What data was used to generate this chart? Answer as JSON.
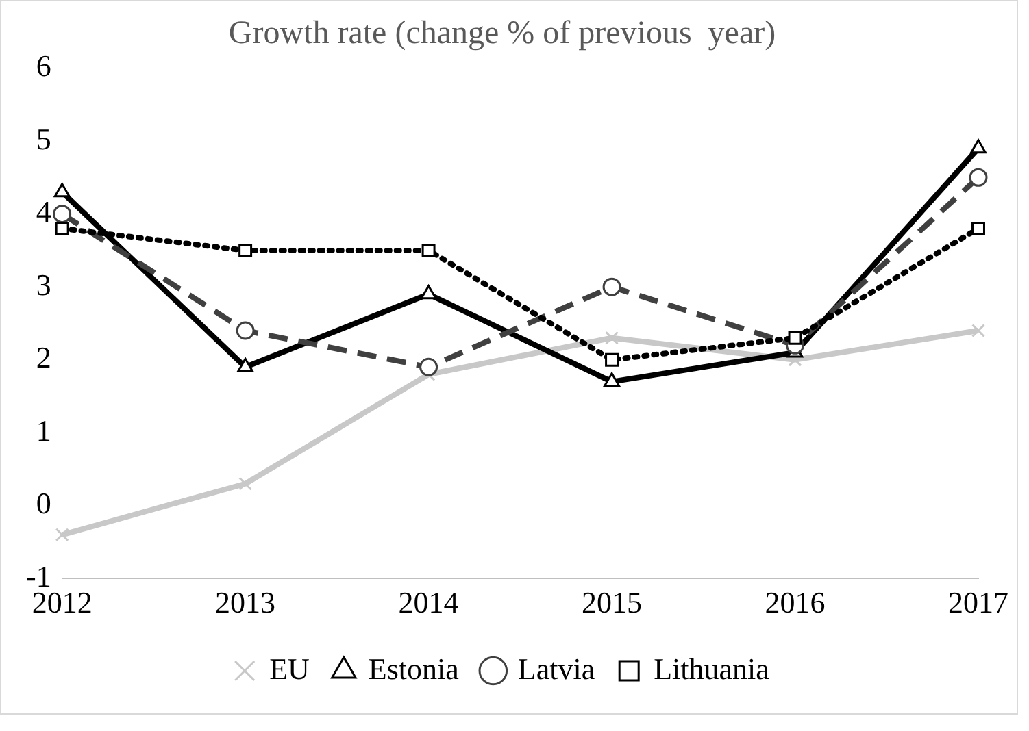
{
  "chart_data": {
    "type": "line",
    "title": "Growth rate (change % of previous  year)",
    "categories": [
      "2012",
      "2013",
      "2014",
      "2015",
      "2016",
      "2017"
    ],
    "series": [
      {
        "name": "EU",
        "color": "#c8c8c8",
        "marker": "cross",
        "line_style": "solid",
        "values": [
          -0.4,
          0.3,
          1.8,
          2.3,
          2.0,
          2.4
        ]
      },
      {
        "name": "Estonia",
        "color": "#000000",
        "marker": "triangle",
        "line_style": "solid",
        "values": [
          4.3,
          1.9,
          2.9,
          1.7,
          2.1,
          4.9
        ]
      },
      {
        "name": "Latvia",
        "color": "#404040",
        "marker": "circle",
        "line_style": "dashed",
        "values": [
          4.0,
          2.4,
          1.9,
          3.0,
          2.2,
          4.5
        ]
      },
      {
        "name": "Lithuania",
        "color": "#000000",
        "marker": "square",
        "line_style": "dotted",
        "values": [
          3.8,
          3.5,
          3.5,
          2.0,
          2.3,
          3.8
        ]
      }
    ],
    "ylim": [
      -1,
      6
    ],
    "yticks": [
      -1,
      0,
      1,
      2,
      3,
      4,
      5,
      6
    ],
    "grid": false,
    "legend": "bottom"
  }
}
